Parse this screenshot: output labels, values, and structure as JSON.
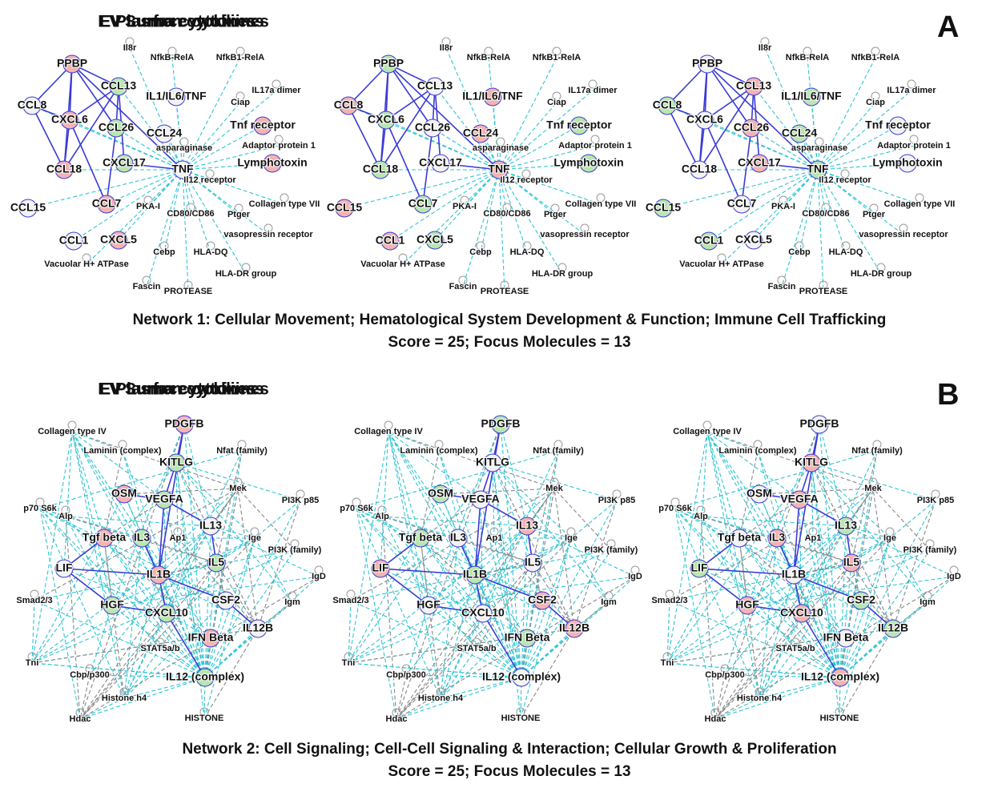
{
  "panels": [
    {
      "letter": "A",
      "titles": [
        "Plasma cytokines",
        "EV Lumen cytokines",
        "EV Surface cytokines"
      ],
      "nodes": [
        "PPBP",
        "Il8r",
        "NfkB-RelA",
        "NfkB1-RelA",
        "CCL13",
        "IL1/IL6/TNF",
        "Ciap",
        "IL17a dimer",
        "CCL8",
        "CXCL6",
        "CCL26",
        "CCL24",
        "Tnf receptor",
        "asparaginase",
        "Adaptor protein 1",
        "CCL18",
        "CXCL17",
        "TNF",
        "Lymphotoxin",
        "Il12 receptor",
        "CCL15",
        "CCL7",
        "PKA-I",
        "CD80/CD86",
        "Ptger",
        "Collagen type VII",
        "CCL1",
        "CXCL5",
        "vasopressin receptor",
        "Cebp",
        "HLA-DQ",
        "Vacuolar H+ ATPase",
        "HLA-DR group",
        "Fascin",
        "PROTEASE"
      ],
      "caption": "Network 1: Cellular Movement; Hematological System Development & Function; Immune Cell Trafficking",
      "score": "Score = 25; Focus Molecules = 13"
    },
    {
      "letter": "B",
      "titles": [
        "Plasma cytokines",
        "EV Lumen cytokines",
        "EV Surface cytokines"
      ],
      "nodes": [
        "PDGFB",
        "Collagen type IV",
        "Laminin (complex)",
        "Nfat (family)",
        "KITLG",
        "Mek",
        "OSM",
        "VEGFA",
        "p70 S6k",
        "PI3K p85",
        "Alp",
        "IL13",
        "Tgf beta",
        "IL3",
        "Ap1",
        "Ige",
        "PI3K (family)",
        "LIF",
        "IL1B",
        "IL5",
        "IgD",
        "Smad2/3",
        "HGF",
        "CSF2",
        "Igm",
        "CXCL10",
        "IL12B",
        "IFN Beta",
        "STAT5a/b",
        "Tni",
        "Cbp/p300",
        "IL12 (complex)",
        "Histone h4",
        "Hdac",
        "HISTONE"
      ],
      "caption": "Network 2: Cell Signaling; Cell-Cell Signaling & Interaction; Cellular Growth & Proliferation",
      "score": "Score = 25; Focus Molecules = 13"
    }
  ]
}
